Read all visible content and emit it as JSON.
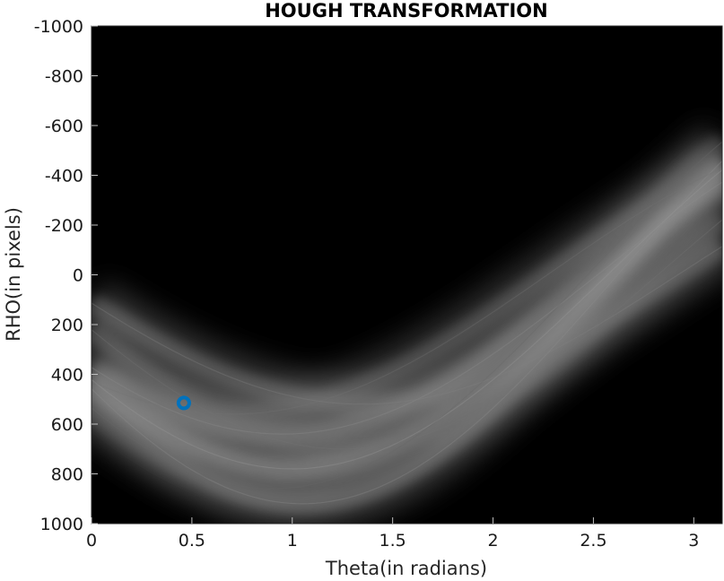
{
  "chart_data": {
    "type": "heatmap",
    "title": "HOUGH TRANSFORMATION",
    "xlabel": "Theta(in radians)",
    "ylabel": "RHO(in pixels)",
    "xlim": [
      0,
      3.1416
    ],
    "ylim": [
      -1000,
      1000
    ],
    "y_reversed": true,
    "x_ticks": [
      {
        "value": 0,
        "label": "0"
      },
      {
        "value": 0.5,
        "label": "0.5"
      },
      {
        "value": 1,
        "label": "1"
      },
      {
        "value": 1.5,
        "label": "1.5"
      },
      {
        "value": 2,
        "label": "2"
      },
      {
        "value": 2.5,
        "label": "2.5"
      },
      {
        "value": 3,
        "label": "3"
      }
    ],
    "y_ticks": [
      {
        "value": -1000,
        "label": "-1000"
      },
      {
        "value": -800,
        "label": "-800"
      },
      {
        "value": -600,
        "label": "-600"
      },
      {
        "value": -400,
        "label": "-400"
      },
      {
        "value": -200,
        "label": "-200"
      },
      {
        "value": 0,
        "label": "0"
      },
      {
        "value": 200,
        "label": "200"
      },
      {
        "value": 400,
        "label": "400"
      },
      {
        "value": 600,
        "label": "600"
      },
      {
        "value": 800,
        "label": "800"
      },
      {
        "value": 1000,
        "label": "1000"
      }
    ],
    "colormap": "gray",
    "background_color": "#000000",
    "band_curves": [
      {
        "amplitude": 920,
        "phase": 1.05,
        "intensity": 0.55
      },
      {
        "amplitude": 780,
        "phase": 1.0,
        "intensity": 0.6
      },
      {
        "amplitude": 640,
        "phase": 0.95,
        "intensity": 0.55
      },
      {
        "amplitude": 560,
        "phase": 0.7,
        "intensity": 0.45
      },
      {
        "amplitude": 520,
        "phase": 1.35,
        "intensity": 0.5
      },
      {
        "amplitude": 700,
        "phase": 1.25,
        "intensity": 0.45
      },
      {
        "amplitude": 860,
        "phase": 0.9,
        "intensity": 0.4
      }
    ],
    "peak_marker": {
      "theta": 0.46,
      "rho": 515,
      "color": "#0072BD",
      "shape": "circle"
    }
  }
}
